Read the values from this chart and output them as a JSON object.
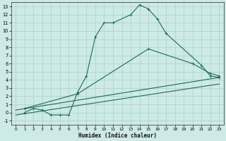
{
  "xlabel": "Humidex (Indice chaleur)",
  "background_color": "#ceeae6",
  "grid_color": "#add4cf",
  "line_color": "#1a6b5a",
  "xlim": [
    -0.5,
    23.5
  ],
  "ylim": [
    -1.5,
    13.5
  ],
  "xticks": [
    0,
    1,
    2,
    3,
    4,
    5,
    6,
    7,
    8,
    9,
    10,
    11,
    12,
    13,
    14,
    15,
    16,
    17,
    18,
    19,
    20,
    21,
    22,
    23
  ],
  "yticks": [
    -1,
    0,
    1,
    2,
    3,
    4,
    5,
    6,
    7,
    8,
    9,
    10,
    11,
    12,
    13
  ],
  "curve1_x": [
    1,
    2,
    3,
    4,
    5,
    6,
    7,
    8,
    9,
    10,
    11,
    13,
    14,
    15,
    16,
    17,
    21,
    22,
    23
  ],
  "curve1_y": [
    0,
    0.5,
    0.3,
    -0.3,
    -0.3,
    -0.3,
    2.5,
    4.5,
    9.3,
    11.0,
    11.0,
    12.0,
    13.2,
    12.7,
    11.5,
    9.7,
    5.8,
    4.5,
    4.3
  ],
  "curve2_x": [
    1,
    7,
    15,
    20,
    22,
    23
  ],
  "curve2_y": [
    0.5,
    2.3,
    7.8,
    6.0,
    4.8,
    4.5
  ],
  "curve3_x": [
    0,
    23
  ],
  "curve3_y": [
    0.3,
    4.3
  ],
  "curve4_x": [
    0,
    23
  ],
  "curve4_y": [
    -0.3,
    3.5
  ]
}
